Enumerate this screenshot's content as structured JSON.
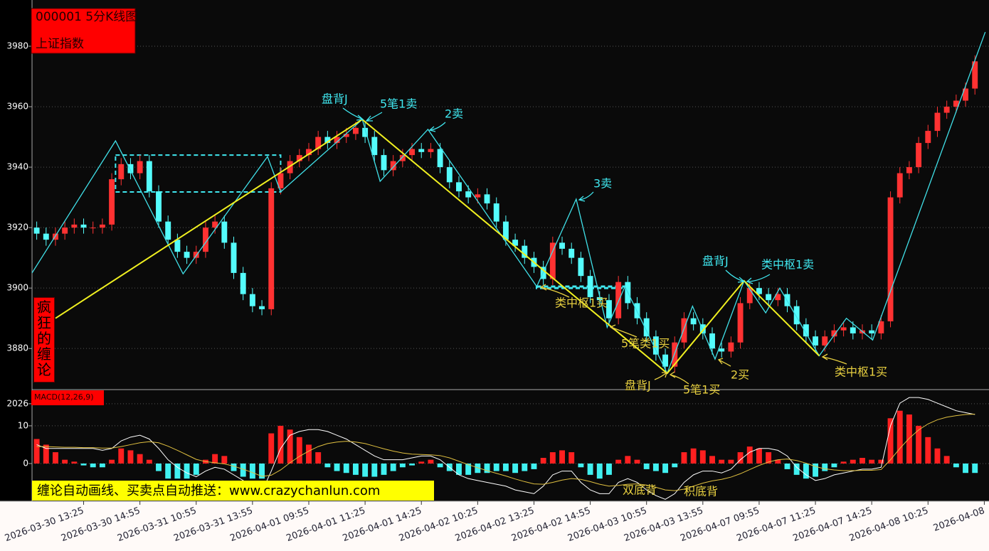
{
  "chart_data": [
    {
      "type": "candlestick",
      "title": "000001 5分K线图",
      "subtitle": "上证指数",
      "side_label": "疯狂的缠论",
      "xlim": [
        -0.5,
        101.5
      ],
      "ylim": [
        3866.4,
        3995.3
      ],
      "yticks": [
        3880,
        3900,
        3920,
        3940,
        3960,
        3980
      ],
      "grid": true,
      "up_color": "#ff3232",
      "down_color": "#54fcfc",
      "open": [
        3920,
        3918,
        3916,
        3918,
        3920,
        3921,
        3920,
        3920,
        3921,
        3936,
        3941,
        3938,
        3942,
        3932,
        3922,
        3916,
        3912,
        3910,
        3912,
        3920,
        3922,
        3915,
        3905,
        3898,
        3894,
        3893,
        3933,
        3938,
        3942,
        3944,
        3946,
        3950,
        3948,
        3950,
        3951,
        3953,
        3950,
        3944,
        3939,
        3942,
        3944,
        3946,
        3945,
        3946,
        3940,
        3935,
        3932,
        3930,
        3931,
        3928,
        3922,
        3916,
        3914,
        3910,
        3907,
        3903,
        3915,
        3913,
        3910,
        3904,
        3897,
        3896,
        3890,
        3902,
        3895,
        3890,
        3884,
        3878,
        3874,
        3882,
        3890,
        3888,
        3885,
        3880,
        3879,
        3882,
        3895,
        3900,
        3898,
        3896,
        3898,
        3894,
        3888,
        3884,
        3881,
        3884,
        3886,
        3887,
        3885,
        3886,
        3885,
        3889,
        3930,
        3938,
        3940,
        3948,
        3952,
        3958,
        3960,
        3962,
        3966
      ],
      "high": [
        3922,
        3920,
        3920,
        3922,
        3923,
        3923,
        3922,
        3923,
        3938,
        3943,
        3943,
        3944,
        3944,
        3934,
        3924,
        3918,
        3914,
        3914,
        3922,
        3924,
        3924,
        3917,
        3907,
        3900,
        3896,
        3935,
        3940,
        3944,
        3946,
        3948,
        3952,
        3952,
        3952,
        3953,
        3955,
        3955,
        3952,
        3946,
        3944,
        3946,
        3948,
        3948,
        3948,
        3948,
        3942,
        3937,
        3934,
        3933,
        3933,
        3930,
        3924,
        3918,
        3916,
        3912,
        3909,
        3917,
        3917,
        3915,
        3912,
        3906,
        3899,
        3898,
        3904,
        3904,
        3897,
        3892,
        3886,
        3880,
        3884,
        3892,
        3892,
        3890,
        3887,
        3882,
        3884,
        3897,
        3902,
        3902,
        3900,
        3900,
        3900,
        3896,
        3890,
        3886,
        3886,
        3888,
        3889,
        3889,
        3888,
        3888,
        3891,
        3932,
        3940,
        3942,
        3950,
        3954,
        3960,
        3962,
        3964,
        3968,
        3977
      ],
      "low": [
        3916,
        3914,
        3914,
        3916,
        3918,
        3918,
        3918,
        3918,
        3919,
        3934,
        3936,
        3936,
        3930,
        3920,
        3914,
        3910,
        3908,
        3908,
        3910,
        3918,
        3913,
        3903,
        3896,
        3892,
        3891,
        3891,
        3931,
        3936,
        3940,
        3942,
        3944,
        3946,
        3946,
        3948,
        3949,
        3948,
        3942,
        3937,
        3937,
        3940,
        3942,
        3943,
        3943,
        3938,
        3933,
        3930,
        3928,
        3928,
        3926,
        3920,
        3914,
        3912,
        3908,
        3905,
        3901,
        3901,
        3911,
        3908,
        3902,
        3895,
        3894,
        3888,
        3888,
        3893,
        3888,
        3882,
        3876,
        3872,
        3872,
        3880,
        3886,
        3883,
        3878,
        3877,
        3877,
        3880,
        3893,
        3896,
        3894,
        3894,
        3892,
        3886,
        3882,
        3879,
        3879,
        3882,
        3884,
        3883,
        3883,
        3883,
        3883,
        3887,
        3928,
        3936,
        3938,
        3946,
        3950,
        3956,
        3958,
        3960,
        3964
      ],
      "close": [
        3918,
        3916,
        3918,
        3920,
        3921,
        3920,
        3920,
        3921,
        3936,
        3941,
        3938,
        3942,
        3932,
        3922,
        3916,
        3912,
        3910,
        3912,
        3920,
        3922,
        3915,
        3905,
        3898,
        3894,
        3893,
        3933,
        3938,
        3942,
        3944,
        3946,
        3950,
        3948,
        3950,
        3951,
        3953,
        3950,
        3944,
        3939,
        3942,
        3944,
        3946,
        3945,
        3946,
        3940,
        3935,
        3932,
        3930,
        3931,
        3928,
        3922,
        3916,
        3914,
        3910,
        3907,
        3903,
        3915,
        3913,
        3910,
        3904,
        3897,
        3896,
        3890,
        3902,
        3895,
        3890,
        3884,
        3878,
        3874,
        3882,
        3890,
        3888,
        3885,
        3880,
        3879,
        3882,
        3895,
        3900,
        3898,
        3896,
        3898,
        3894,
        3888,
        3884,
        3881,
        3884,
        3886,
        3887,
        3885,
        3886,
        3885,
        3889,
        3930,
        3938,
        3940,
        3948,
        3952,
        3958,
        3960,
        3962,
        3966,
        3975
      ],
      "bi": {
        "color": "#40e0e8",
        "x": [
          -0.5,
          8.4,
          15.6,
          24.6,
          26,
          34.7,
          36.6,
          41.7,
          53.3,
          57.5,
          60.8,
          62.7,
          67.2,
          69.9,
          72.3,
          75.4,
          77.7,
          79.2,
          83.4,
          86.3,
          89.1,
          101.1
        ],
        "y": [
          3905,
          3948.7,
          3904.7,
          3943.5,
          3931.8,
          3955.8,
          3935.3,
          3952.5,
          3900.5,
          3929.4,
          3887,
          3900.5,
          3871.8,
          3894,
          3876.5,
          3902.4,
          3891.8,
          3900,
          3877.6,
          3890,
          3882.8,
          3984.7
        ]
      },
      "segment": {
        "color": "#f0f020",
        "x": [
          2,
          34.7,
          67.2,
          75.4,
          83.4
        ],
        "y": [
          3890,
          3955.8,
          3871.8,
          3902.4,
          3877.6
        ]
      },
      "zones": [
        {
          "x": [
            8.4,
            26
          ],
          "y": [
            3931.8,
            3944
          ]
        },
        {
          "x": [
            53.3,
            63.1
          ],
          "y": [
            3900,
            3900.5
          ]
        }
      ],
      "zone_color": "#40e8f0",
      "annotations": [
        "盘背J",
        "5笔1卖",
        "2卖",
        "3卖",
        "盘背J",
        "类中枢1卖",
        "类中枢1买",
        "5笔类1买",
        "盘背J",
        "5笔1买",
        "2买",
        "类中枢1买"
      ]
    },
    {
      "type": "macd",
      "title": "MACD(12,26,9)",
      "banner": "缠论自动画线、买卖点自动推送：www.crazychanlun.com",
      "xlim": [
        -0.5,
        101.5
      ],
      "xticks": [
        {
          "value": 5,
          "label": "2026-03-30 13:25"
        },
        {
          "value": 11,
          "label": "2026-03-30 14:55"
        },
        {
          "value": 17,
          "label": "2026-03-31 10:55"
        },
        {
          "value": 23,
          "label": "2026-03-31 13:55"
        },
        {
          "value": 29,
          "label": "2026-04-01 09:55"
        },
        {
          "value": 35,
          "label": "2026-04-01 11:25"
        },
        {
          "value": 41,
          "label": "2026-04-01 14:25"
        },
        {
          "value": 47,
          "label": "2026-04-02 10:25"
        },
        {
          "value": 53,
          "label": "2026-04-02 13:25"
        },
        {
          "value": 59,
          "label": "2026-04-02 14:55"
        },
        {
          "value": 65,
          "label": "2026-04-03 10:55"
        },
        {
          "value": 71,
          "label": "2026-04-03 13:55"
        },
        {
          "value": 77,
          "label": "2026-04-07 09:55"
        },
        {
          "value": 83,
          "label": "2026-04-07 11:25"
        },
        {
          "value": 89,
          "label": "2026-04-07 14:25"
        },
        {
          "value": 95,
          "label": "2026-04-08 10:25"
        },
        {
          "value": 101,
          "label": "2026-04-08"
        }
      ],
      "ylim": [
        -10,
        19.6
      ],
      "yticks": [
        0,
        10,
        {
          "value": 15.85,
          "label": "2026"
        }
      ],
      "grid": true,
      "up_color": "#ff2020",
      "down_color": "#40f0f0",
      "values": [
        6.5,
        5,
        3,
        1,
        0.5,
        -0.5,
        -1,
        -1,
        1,
        4,
        3.5,
        2.5,
        1,
        -2,
        -4,
        -4,
        -4,
        -3,
        1,
        2.5,
        2,
        -2,
        -3.5,
        -4,
        -4,
        8,
        10,
        9,
        7,
        5,
        3,
        -1,
        -2,
        -2.5,
        -3,
        -3.5,
        -3.5,
        -3,
        -2,
        -1,
        -0.5,
        0.5,
        1,
        -1,
        -2,
        -3,
        -3,
        -2.5,
        -2.5,
        -2,
        -2,
        -2.5,
        -2,
        -1.5,
        1.5,
        3,
        3.5,
        3,
        -1,
        -3,
        -4,
        -3,
        1,
        2,
        1,
        -1.5,
        -2,
        -2.5,
        -1,
        3,
        4,
        3.5,
        2,
        1,
        1,
        3,
        4.5,
        4,
        3,
        1,
        -1.5,
        -3,
        -4,
        -3.5,
        -2,
        -1,
        0.5,
        1,
        1.5,
        1,
        1,
        12,
        14,
        13,
        10,
        7,
        4,
        2,
        -1,
        -2.5,
        -2.5
      ],
      "lines": [
        {
          "color": "#ffffff",
          "values": [
            5,
            4,
            4,
            4,
            4,
            4,
            4,
            3.5,
            4,
            6,
            7,
            7.5,
            6.5,
            4,
            1,
            -1,
            -2.5,
            -3.5,
            -2,
            -1,
            -1.5,
            -3,
            -4.5,
            -6,
            -7.5,
            -2,
            4,
            7.5,
            8.5,
            9,
            9,
            8.5,
            7.5,
            6.5,
            5,
            3.5,
            2,
            1,
            1,
            1,
            1.5,
            2,
            2,
            1,
            -1,
            -3,
            -4,
            -4.5,
            -5,
            -5.5,
            -6,
            -7,
            -7.5,
            -8,
            -6,
            -3,
            -2,
            -2,
            -5,
            -7,
            -8,
            -8,
            -5,
            -4,
            -5,
            -7,
            -8.5,
            -9.5,
            -8,
            -5,
            -3,
            -2,
            -2,
            -2.5,
            -1.5,
            1,
            3,
            4,
            4,
            3.5,
            2,
            -1,
            -3,
            -4.5,
            -4,
            -3,
            -2.5,
            -2,
            -1.5,
            -1.5,
            -1,
            10,
            16,
            17.5,
            17.5,
            17,
            16,
            15,
            14,
            13.5,
            13
          ]
        },
        {
          "color": "#e0c040",
          "values": [
            4.5,
            4.5,
            4.4,
            4.3,
            4.3,
            4.2,
            4.2,
            4.1,
            4.1,
            4.5,
            5,
            5.5,
            5.8,
            5.5,
            4.6,
            3.5,
            2.3,
            1.1,
            0.5,
            0.2,
            -0.1,
            -0.7,
            -1.5,
            -2.4,
            -3.4,
            -3.1,
            -1.7,
            0.2,
            1.9,
            3.3,
            4.5,
            5.3,
            5.7,
            5.9,
            5.7,
            5.3,
            4.6,
            3.9,
            3.3,
            2.8,
            2.5,
            2.4,
            2.3,
            2.1,
            1.5,
            0.6,
            -0.3,
            -1.1,
            -1.9,
            -2.6,
            -3.3,
            -4.1,
            -4.8,
            -5.4,
            -5.5,
            -5,
            -4.4,
            -4,
            -4.2,
            -4.8,
            -5.5,
            -6,
            -5.8,
            -5.5,
            -5.4,
            -5.7,
            -6.3,
            -7,
            -7.2,
            -6.8,
            -6,
            -5.2,
            -4.6,
            -4.2,
            -3.6,
            -2.7,
            -1.6,
            -0.5,
            0.4,
            1,
            1.2,
            0.8,
            0.1,
            -0.8,
            -1.4,
            -1.7,
            -1.9,
            -1.9,
            -1.8,
            -1.8,
            -1.6,
            1,
            4,
            6.7,
            8.9,
            10.5,
            11.6,
            12.3,
            12.7,
            13,
            13.1
          ]
        }
      ],
      "annotations": [
        "双底背",
        "积底背"
      ]
    }
  ]
}
